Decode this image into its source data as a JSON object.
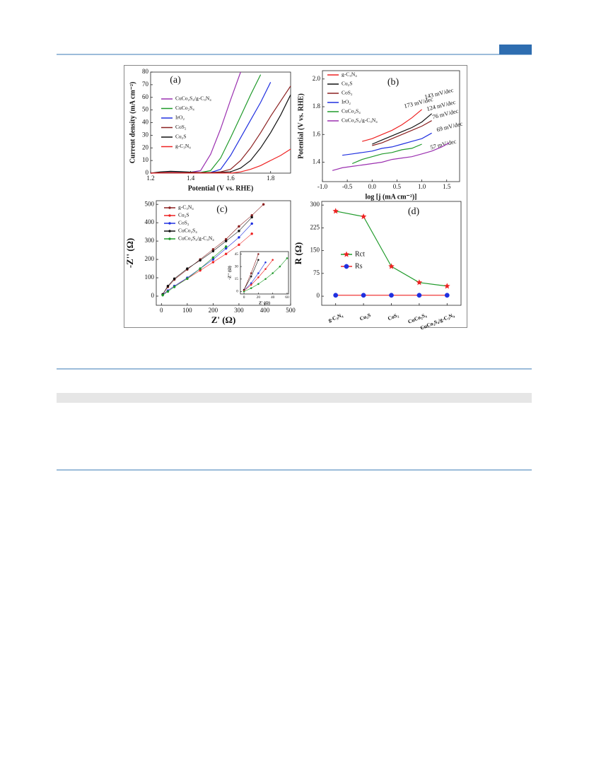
{
  "chart_data": [
    {
      "type": "line",
      "annotation": "(a)",
      "xlabel": "Potential (V vs. RHE)",
      "ylabel": "Current density (mA cm⁻²)",
      "xlim": [
        1.2,
        1.9
      ],
      "xticks": [
        1.2,
        1.4,
        1.6,
        1.8
      ],
      "ylim": [
        0,
        80
      ],
      "yticks": [
        0,
        10,
        20,
        30,
        40,
        50,
        60,
        70,
        80
      ],
      "legend": "upper left",
      "x": [
        1.2,
        1.25,
        1.3,
        1.35,
        1.4,
        1.45,
        1.5,
        1.55,
        1.6,
        1.65,
        1.7,
        1.75,
        1.8,
        1.85,
        1.9
      ],
      "series": [
        {
          "name": "CuCo₂S₄/g-C₃N₄",
          "color": "#9b30b0",
          "values": [
            0,
            0.5,
            1,
            0.8,
            0.6,
            2,
            15,
            35,
            58,
            80,
            null,
            null,
            null,
            null,
            null
          ]
        },
        {
          "name": "CuCo₂S₄",
          "color": "#1f9a2a",
          "values": [
            0,
            0.4,
            0.6,
            0.5,
            0.4,
            0.5,
            2,
            12,
            28,
            45,
            62,
            78,
            null,
            null,
            null
          ]
        },
        {
          "name": "IrO₂",
          "color": "#2030e0",
          "values": [
            0,
            0.3,
            0.4,
            0.4,
            0.3,
            0.3,
            0.5,
            3,
            14,
            28,
            42,
            56,
            72,
            null,
            null
          ]
        },
        {
          "name": "CoS₂",
          "color": "#8b2020",
          "values": [
            0,
            0.3,
            0.4,
            0.3,
            0.3,
            0.3,
            0.4,
            1,
            3,
            10,
            20,
            32,
            45,
            57,
            69
          ]
        },
        {
          "name": "Cu₂S",
          "color": "#111111",
          "values": [
            0,
            1,
            1.5,
            1.2,
            0.8,
            0.5,
            0.5,
            0.6,
            1,
            4,
            10,
            20,
            32,
            46,
            62
          ]
        },
        {
          "name": "g-C₃N₄",
          "color": "#ee2222",
          "values": [
            0,
            0.2,
            0.3,
            0.2,
            0.2,
            0.2,
            0.2,
            0.2,
            0,
            1,
            3,
            6,
            10,
            14,
            19
          ]
        }
      ]
    },
    {
      "type": "line",
      "annotation": "(b)",
      "xlabel": "log [j (mA cm⁻²)]",
      "ylabel": "Potential (V vs. RHE)",
      "xlim": [
        -1.0,
        1.76
      ],
      "xticks": [
        {
          "value": -1.0,
          "label": "-1.0"
        },
        -0.5,
        {
          "value": 0,
          "label": "0.0"
        },
        0.5,
        {
          "value": 1.0,
          "label": "1.0"
        },
        1.5
      ],
      "ylim": [
        1.26,
        2.06
      ],
      "yticks": [
        1.4,
        1.6,
        1.8,
        {
          "value": 2.0,
          "label": "2.0"
        }
      ],
      "legend": "upper left",
      "slope_labels": [
        "173 mV/dec",
        "143 mV/dec",
        "124 mV/dec",
        "76 mV/dec",
        "69 mV/dec",
        "57 mV/dec"
      ],
      "x": [
        -0.8,
        -0.6,
        -0.4,
        -0.2,
        0,
        0.2,
        0.4,
        0.6,
        0.8,
        1.0,
        1.2,
        1.4,
        1.55
      ],
      "series": [
        {
          "name": "g-C₃N₄",
          "color": "#ee2222",
          "values": [
            null,
            null,
            null,
            1.55,
            1.57,
            1.6,
            1.63,
            1.67,
            1.72,
            1.78,
            null,
            null,
            null
          ]
        },
        {
          "name": "Cu₂S",
          "color": "#111111",
          "values": [
            null,
            null,
            null,
            null,
            1.53,
            1.56,
            1.59,
            1.62,
            1.65,
            1.69,
            1.75,
            null,
            null
          ]
        },
        {
          "name": "CoS₂",
          "color": "#8b2020",
          "values": [
            null,
            null,
            null,
            null,
            1.52,
            1.54,
            1.57,
            1.6,
            1.63,
            1.66,
            1.7,
            null,
            null
          ]
        },
        {
          "name": "IrO₂",
          "color": "#2030e0",
          "values": [
            null,
            1.45,
            1.46,
            1.47,
            1.48,
            1.5,
            1.51,
            1.53,
            1.55,
            1.57,
            1.61,
            null,
            null
          ]
        },
        {
          "name": "CuCo₂S₄",
          "color": "#1f9a2a",
          "values": [
            null,
            null,
            1.39,
            1.42,
            1.44,
            1.46,
            1.47,
            1.49,
            1.5,
            1.53,
            null,
            null,
            null
          ]
        },
        {
          "name": "CuCo₂S₄/g-C₃N₄",
          "color": "#9b30b0",
          "values": [
            1.34,
            1.36,
            1.37,
            1.38,
            1.39,
            1.4,
            1.42,
            1.43,
            1.44,
            1.46,
            1.48,
            1.51,
            1.54
          ]
        }
      ]
    },
    {
      "type": "line",
      "annotation": "(c)",
      "xlabel": "Z' (Ω)",
      "ylabel": "-Z'' (Ω)",
      "markers": "circle",
      "xlim": [
        -20,
        500
      ],
      "xticks": [
        0,
        100,
        200,
        300,
        400,
        500
      ],
      "ylim": [
        -50,
        520
      ],
      "yticks": [
        0,
        100,
        200,
        300,
        400,
        500
      ],
      "legend": "upper left",
      "x": [
        5,
        25,
        50,
        100,
        150,
        200,
        250,
        300,
        350,
        395
      ],
      "series": [
        {
          "name": "g-C₃N₄",
          "color": "#8b2020",
          "values": [
            10,
            50,
            90,
            145,
            200,
            255,
            310,
            380,
            440,
            500
          ]
        },
        {
          "name": "Cu₂S",
          "color": "#ee2222",
          "values": [
            8,
            30,
            55,
            95,
            140,
            185,
            230,
            280,
            340,
            null
          ]
        },
        {
          "name": "CoS₂",
          "color": "#2030e0",
          "values": [
            8,
            30,
            55,
            100,
            150,
            200,
            260,
            320,
            395,
            null
          ]
        },
        {
          "name": "CuCo₂S₄",
          "color": "#111111",
          "values": [
            10,
            55,
            95,
            150,
            195,
            245,
            300,
            355,
            430,
            null
          ]
        },
        {
          "name": "CuCo₂S₄/g-C₃N₄",
          "color": "#1f9a2a",
          "values": [
            5,
            25,
            50,
            95,
            150,
            210,
            270,
            null,
            null,
            null
          ]
        }
      ]
    },
    {
      "type": "line",
      "annotation": "(d)",
      "ylabel": "R (Ω)",
      "ylim": [
        -30,
        312
      ],
      "yticks": [
        0,
        75,
        150,
        225,
        300
      ],
      "legend": "center left",
      "categories": [
        "g-C₃N₄",
        "Cu₂S",
        "CoS₂",
        "CuCo₂S₄",
        "CuCo₂S₄/g-C₃N₄"
      ],
      "series": [
        {
          "name": "Rct",
          "color": "#1f9a2a",
          "marker": "star",
          "marker_color": "#ee2222",
          "values": [
            280,
            262,
            98,
            45,
            33
          ]
        },
        {
          "name": "Rs",
          "color": "#ee2222",
          "marker": "circle",
          "marker_color": "#2030e0",
          "values": [
            3,
            3,
            3,
            3,
            3
          ]
        }
      ]
    },
    {
      "type": "line",
      "xlabel": "Z' (Ω)",
      "ylabel": "-Z'' (Ω)",
      "markers": "circle",
      "xlim": [
        -5,
        62
      ],
      "xticks": [
        0,
        20,
        40,
        60
      ],
      "ylim": [
        -3,
        48
      ],
      "yticks": [
        0,
        15,
        30,
        45
      ],
      "x": [
        0,
        10,
        20,
        30,
        40,
        50,
        60
      ],
      "series": [
        {
          "color": "#8b2020",
          "values": [
            2,
            22,
            45,
            null,
            null,
            null,
            null
          ]
        },
        {
          "color": "#111111",
          "values": [
            2,
            18,
            38,
            null,
            null,
            null,
            null
          ]
        },
        {
          "color": "#2030e0",
          "values": [
            1,
            10,
            22,
            35,
            null,
            null,
            null
          ]
        },
        {
          "color": "#ee2222",
          "values": [
            1,
            8,
            17,
            27,
            38,
            null,
            null
          ]
        },
        {
          "color": "#1f9a2a",
          "values": [
            0,
            4,
            9,
            15,
            22,
            30,
            40
          ]
        }
      ]
    }
  ]
}
